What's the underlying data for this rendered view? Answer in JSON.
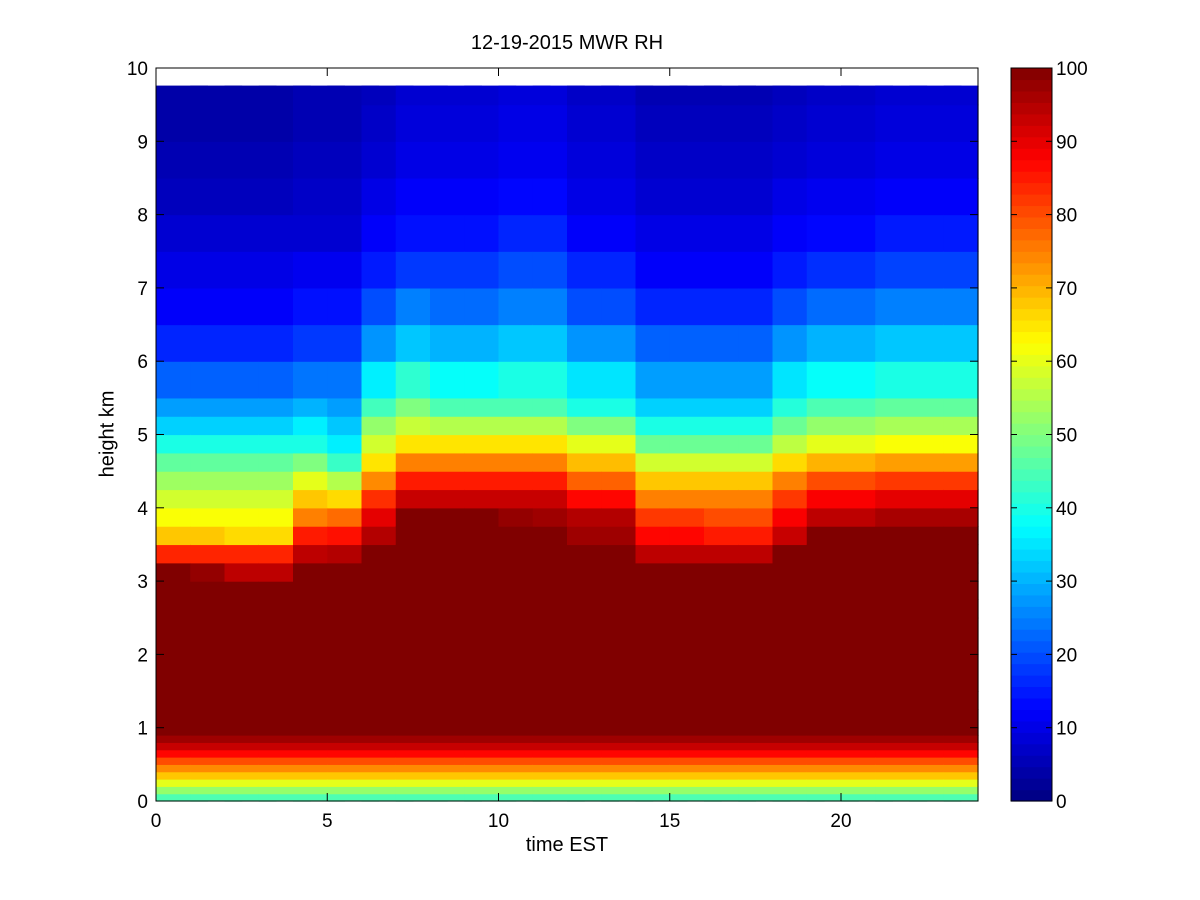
{
  "chart_data": {
    "type": "heatmap",
    "title": "12-19-2015 MWR RH",
    "xlabel": "time EST",
    "ylabel": "height km",
    "xlim": [
      0,
      24
    ],
    "ylim": [
      0,
      10
    ],
    "xticks": [
      0,
      5,
      10,
      15,
      20
    ],
    "yticks": [
      0,
      1,
      2,
      3,
      4,
      5,
      6,
      7,
      8,
      9,
      10
    ],
    "colormap": "jet",
    "colorbar": {
      "range": [
        0,
        100
      ],
      "ticks": [
        0,
        10,
        20,
        30,
        40,
        50,
        60,
        70,
        80,
        90,
        100
      ]
    },
    "time_hours": [
      0,
      1,
      2,
      3,
      4,
      5,
      6,
      7,
      8,
      9,
      10,
      11,
      12,
      13,
      14,
      15,
      16,
      17,
      18,
      19,
      20,
      21,
      22,
      23
    ],
    "height_km": [
      0,
      0.1,
      0.2,
      0.3,
      0.4,
      0.5,
      0.6,
      0.7,
      0.8,
      0.9,
      1.0,
      1.25,
      1.5,
      2.0,
      2.5,
      2.75,
      3.0,
      3.25,
      3.5,
      3.75,
      4.0,
      4.25,
      4.5,
      4.75,
      5.0,
      5.25,
      5.5,
      6.0,
      6.5,
      7.0,
      7.5,
      8.0,
      8.5,
      9.0,
      9.5,
      9.75
    ],
    "rh_percent": [
      [
        45,
        52,
        60,
        68,
        74,
        80,
        87,
        93,
        97,
        100,
        100,
        100,
        100,
        100,
        100,
        100,
        100,
        84,
        68,
        62,
        58,
        53,
        47,
        40,
        33,
        28,
        22,
        16,
        12,
        10,
        8,
        6,
        5,
        4,
        4,
        4
      ],
      [
        45,
        52,
        60,
        68,
        74,
        80,
        87,
        93,
        97,
        100,
        100,
        100,
        100,
        100,
        100,
        100,
        98,
        84,
        68,
        62,
        58,
        53,
        47,
        40,
        33,
        28,
        22,
        16,
        12,
        10,
        8,
        6,
        5,
        4,
        4,
        4
      ],
      [
        45,
        52,
        60,
        68,
        74,
        80,
        87,
        93,
        97,
        100,
        100,
        100,
        100,
        100,
        100,
        100,
        94,
        84,
        66,
        62,
        58,
        53,
        47,
        40,
        33,
        28,
        22,
        16,
        12,
        10,
        8,
        6,
        5,
        4,
        4,
        4
      ],
      [
        45,
        52,
        60,
        68,
        74,
        80,
        87,
        93,
        97,
        100,
        100,
        100,
        100,
        100,
        100,
        100,
        94,
        84,
        66,
        62,
        58,
        53,
        47,
        40,
        33,
        28,
        22,
        16,
        12,
        10,
        8,
        6,
        5,
        4,
        4,
        4
      ],
      [
        45,
        52,
        60,
        68,
        74,
        80,
        87,
        93,
        97,
        100,
        100,
        100,
        100,
        100,
        100,
        100,
        100,
        94,
        85,
        75,
        68,
        60,
        50,
        40,
        36,
        30,
        24,
        18,
        14,
        11,
        8,
        7,
        6,
        5,
        5,
        5
      ],
      [
        45,
        52,
        60,
        68,
        74,
        80,
        87,
        93,
        97,
        100,
        100,
        100,
        100,
        100,
        100,
        100,
        100,
        95,
        86,
        77,
        66,
        55,
        43,
        36,
        32,
        28,
        24,
        18,
        14,
        11,
        8,
        7,
        6,
        5,
        5,
        5
      ],
      [
        45,
        52,
        60,
        68,
        74,
        80,
        87,
        93,
        97,
        100,
        100,
        100,
        100,
        100,
        100,
        100,
        100,
        100,
        95,
        90,
        83,
        74,
        65,
        58,
        52,
        44,
        36,
        27,
        20,
        15,
        12,
        10,
        8,
        7,
        6,
        6
      ],
      [
        45,
        52,
        60,
        68,
        74,
        80,
        87,
        93,
        97,
        100,
        100,
        100,
        100,
        100,
        100,
        100,
        100,
        100,
        100,
        100,
        93,
        85,
        75,
        65,
        57,
        50,
        42,
        32,
        25,
        18,
        14,
        12,
        10,
        9,
        8,
        8
      ],
      [
        45,
        52,
        60,
        68,
        74,
        80,
        87,
        93,
        97,
        100,
        100,
        100,
        100,
        100,
        100,
        100,
        100,
        100,
        100,
        100,
        93,
        85,
        75,
        65,
        55,
        45,
        38,
        30,
        23,
        18,
        14,
        12,
        10,
        9,
        8,
        8
      ],
      [
        45,
        52,
        60,
        68,
        74,
        80,
        87,
        93,
        97,
        100,
        100,
        100,
        100,
        100,
        100,
        100,
        100,
        100,
        100,
        100,
        93,
        85,
        75,
        65,
        55,
        45,
        38,
        30,
        23,
        18,
        14,
        12,
        10,
        9,
        8,
        8
      ],
      [
        45,
        52,
        60,
        68,
        74,
        80,
        87,
        93,
        97,
        100,
        100,
        100,
        100,
        100,
        100,
        100,
        100,
        100,
        100,
        98,
        93,
        85,
        75,
        65,
        55,
        45,
        40,
        32,
        25,
        20,
        16,
        13,
        11,
        10,
        9,
        9
      ],
      [
        45,
        52,
        60,
        68,
        74,
        80,
        87,
        93,
        97,
        100,
        100,
        100,
        100,
        100,
        100,
        100,
        100,
        100,
        100,
        97,
        93,
        85,
        75,
        65,
        55,
        45,
        40,
        32,
        25,
        20,
        16,
        13,
        11,
        10,
        9,
        9
      ],
      [
        45,
        52,
        60,
        68,
        74,
        80,
        87,
        93,
        97,
        100,
        100,
        100,
        100,
        100,
        100,
        100,
        100,
        100,
        97,
        95,
        87,
        78,
        69,
        60,
        50,
        40,
        35,
        27,
        20,
        16,
        12,
        10,
        9,
        8,
        7,
        7
      ],
      [
        45,
        52,
        60,
        68,
        74,
        80,
        87,
        93,
        97,
        100,
        100,
        100,
        100,
        100,
        100,
        100,
        100,
        100,
        97,
        95,
        87,
        78,
        69,
        60,
        50,
        40,
        35,
        27,
        20,
        16,
        12,
        10,
        9,
        8,
        7,
        7
      ],
      [
        45,
        52,
        60,
        68,
        74,
        80,
        87,
        93,
        97,
        100,
        100,
        100,
        100,
        100,
        100,
        100,
        100,
        94,
        87,
        82,
        75,
        68,
        58,
        48,
        40,
        33,
        28,
        22,
        16,
        12,
        10,
        8,
        7,
        6,
        5,
        5
      ],
      [
        45,
        52,
        60,
        68,
        74,
        80,
        87,
        93,
        97,
        100,
        100,
        100,
        100,
        100,
        100,
        100,
        100,
        94,
        87,
        82,
        75,
        68,
        58,
        48,
        40,
        33,
        28,
        22,
        16,
        12,
        10,
        8,
        7,
        6,
        5,
        5
      ],
      [
        45,
        52,
        60,
        68,
        74,
        80,
        87,
        93,
        97,
        100,
        100,
        100,
        100,
        100,
        100,
        100,
        100,
        94,
        85,
        80,
        75,
        68,
        58,
        48,
        40,
        33,
        28,
        22,
        16,
        12,
        10,
        8,
        7,
        6,
        5,
        5
      ],
      [
        45,
        52,
        60,
        68,
        74,
        80,
        87,
        93,
        97,
        100,
        100,
        100,
        100,
        100,
        100,
        100,
        100,
        94,
        85,
        80,
        75,
        68,
        58,
        48,
        40,
        33,
        28,
        22,
        16,
        12,
        10,
        8,
        7,
        6,
        5,
        5
      ],
      [
        45,
        52,
        60,
        68,
        74,
        80,
        87,
        93,
        97,
        100,
        100,
        100,
        100,
        100,
        100,
        100,
        100,
        100,
        93,
        88,
        82,
        75,
        66,
        56,
        48,
        41,
        35,
        27,
        20,
        15,
        12,
        10,
        8,
        7,
        6,
        6
      ],
      [
        45,
        52,
        60,
        68,
        74,
        80,
        87,
        93,
        97,
        100,
        100,
        100,
        100,
        100,
        100,
        100,
        100,
        100,
        100,
        94,
        88,
        80,
        70,
        60,
        52,
        45,
        38,
        30,
        23,
        17,
        13,
        11,
        9,
        8,
        7,
        7
      ],
      [
        45,
        52,
        60,
        68,
        74,
        80,
        87,
        93,
        97,
        100,
        100,
        100,
        100,
        100,
        100,
        100,
        100,
        100,
        100,
        94,
        88,
        80,
        70,
        60,
        52,
        45,
        38,
        30,
        23,
        17,
        13,
        11,
        9,
        8,
        7,
        7
      ],
      [
        45,
        52,
        60,
        68,
        74,
        80,
        87,
        93,
        97,
        100,
        100,
        100,
        100,
        100,
        100,
        100,
        100,
        100,
        100,
        96,
        90,
        82,
        72,
        62,
        54,
        47,
        40,
        32,
        25,
        19,
        15,
        12,
        10,
        9,
        8,
        8
      ],
      [
        45,
        52,
        60,
        68,
        74,
        80,
        87,
        93,
        97,
        100,
        100,
        100,
        100,
        100,
        100,
        100,
        100,
        100,
        100,
        96,
        90,
        82,
        72,
        62,
        54,
        47,
        40,
        32,
        25,
        19,
        15,
        12,
        10,
        9,
        8,
        8
      ],
      [
        45,
        52,
        60,
        68,
        74,
        80,
        87,
        93,
        97,
        100,
        100,
        100,
        100,
        100,
        100,
        100,
        100,
        100,
        100,
        96,
        90,
        82,
        72,
        62,
        54,
        47,
        40,
        32,
        25,
        19,
        15,
        12,
        10,
        9,
        8,
        8
      ]
    ]
  }
}
